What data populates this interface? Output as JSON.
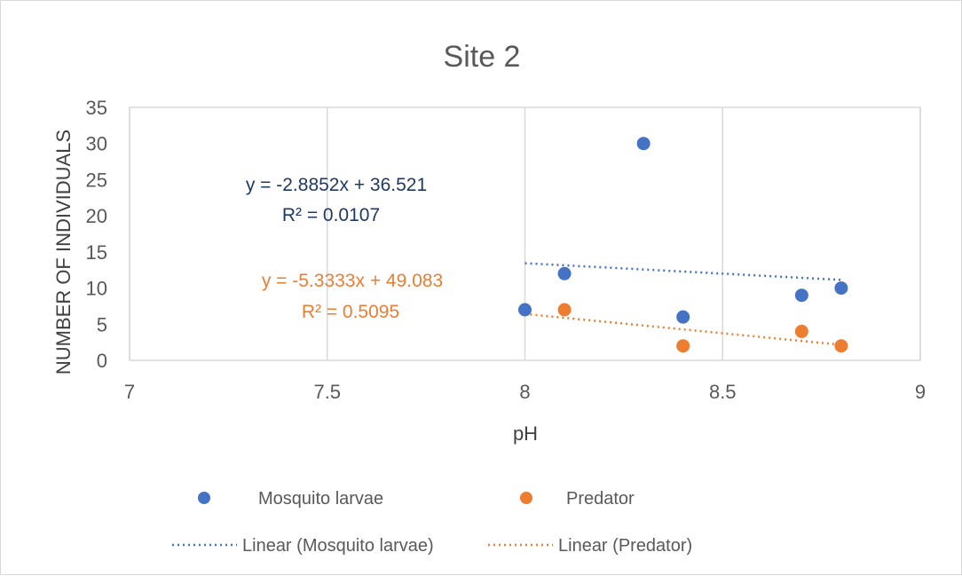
{
  "chart_data": {
    "type": "scatter",
    "title": "Site 2",
    "xlabel": "pH",
    "ylabel": "NUMBER OF INDIVIDUALS",
    "xlim": [
      7,
      9
    ],
    "ylim": [
      0,
      35
    ],
    "x_ticks": [
      "7",
      "7.5",
      "8",
      "8.5",
      "9"
    ],
    "y_ticks": [
      "0",
      "5",
      "10",
      "15",
      "20",
      "25",
      "30",
      "35"
    ],
    "grid": "vertical",
    "legend_position": "bottom",
    "series": [
      {
        "name": "Mosquito larvae",
        "color": "#4472c4",
        "points": [
          [
            8.0,
            7
          ],
          [
            8.1,
            12
          ],
          [
            8.3,
            30
          ],
          [
            8.4,
            6
          ],
          [
            8.7,
            9
          ],
          [
            8.8,
            10
          ]
        ]
      },
      {
        "name": "Predator",
        "color": "#ed7d31",
        "points": [
          [
            8.1,
            7
          ],
          [
            8.4,
            2
          ],
          [
            8.7,
            4
          ],
          [
            8.8,
            2
          ]
        ]
      }
    ],
    "trendlines": [
      {
        "name": "Linear (Mosquito larvae)",
        "color": "#4472c4",
        "slope": -2.8852,
        "intercept": 36.521,
        "x_range": [
          8.0,
          8.8
        ],
        "equation": "y = -2.8852x + 36.521",
        "r2": "R² = 0.0107",
        "label_color": "#1f3864"
      },
      {
        "name": "Linear (Predator)",
        "color": "#ed7d31",
        "slope": -5.3333,
        "intercept": 49.083,
        "x_range": [
          8.0,
          8.8
        ],
        "equation": "y = -5.3333x + 49.083",
        "r2": "R² = 0.5095",
        "label_color": "#ed7d31"
      }
    ]
  }
}
